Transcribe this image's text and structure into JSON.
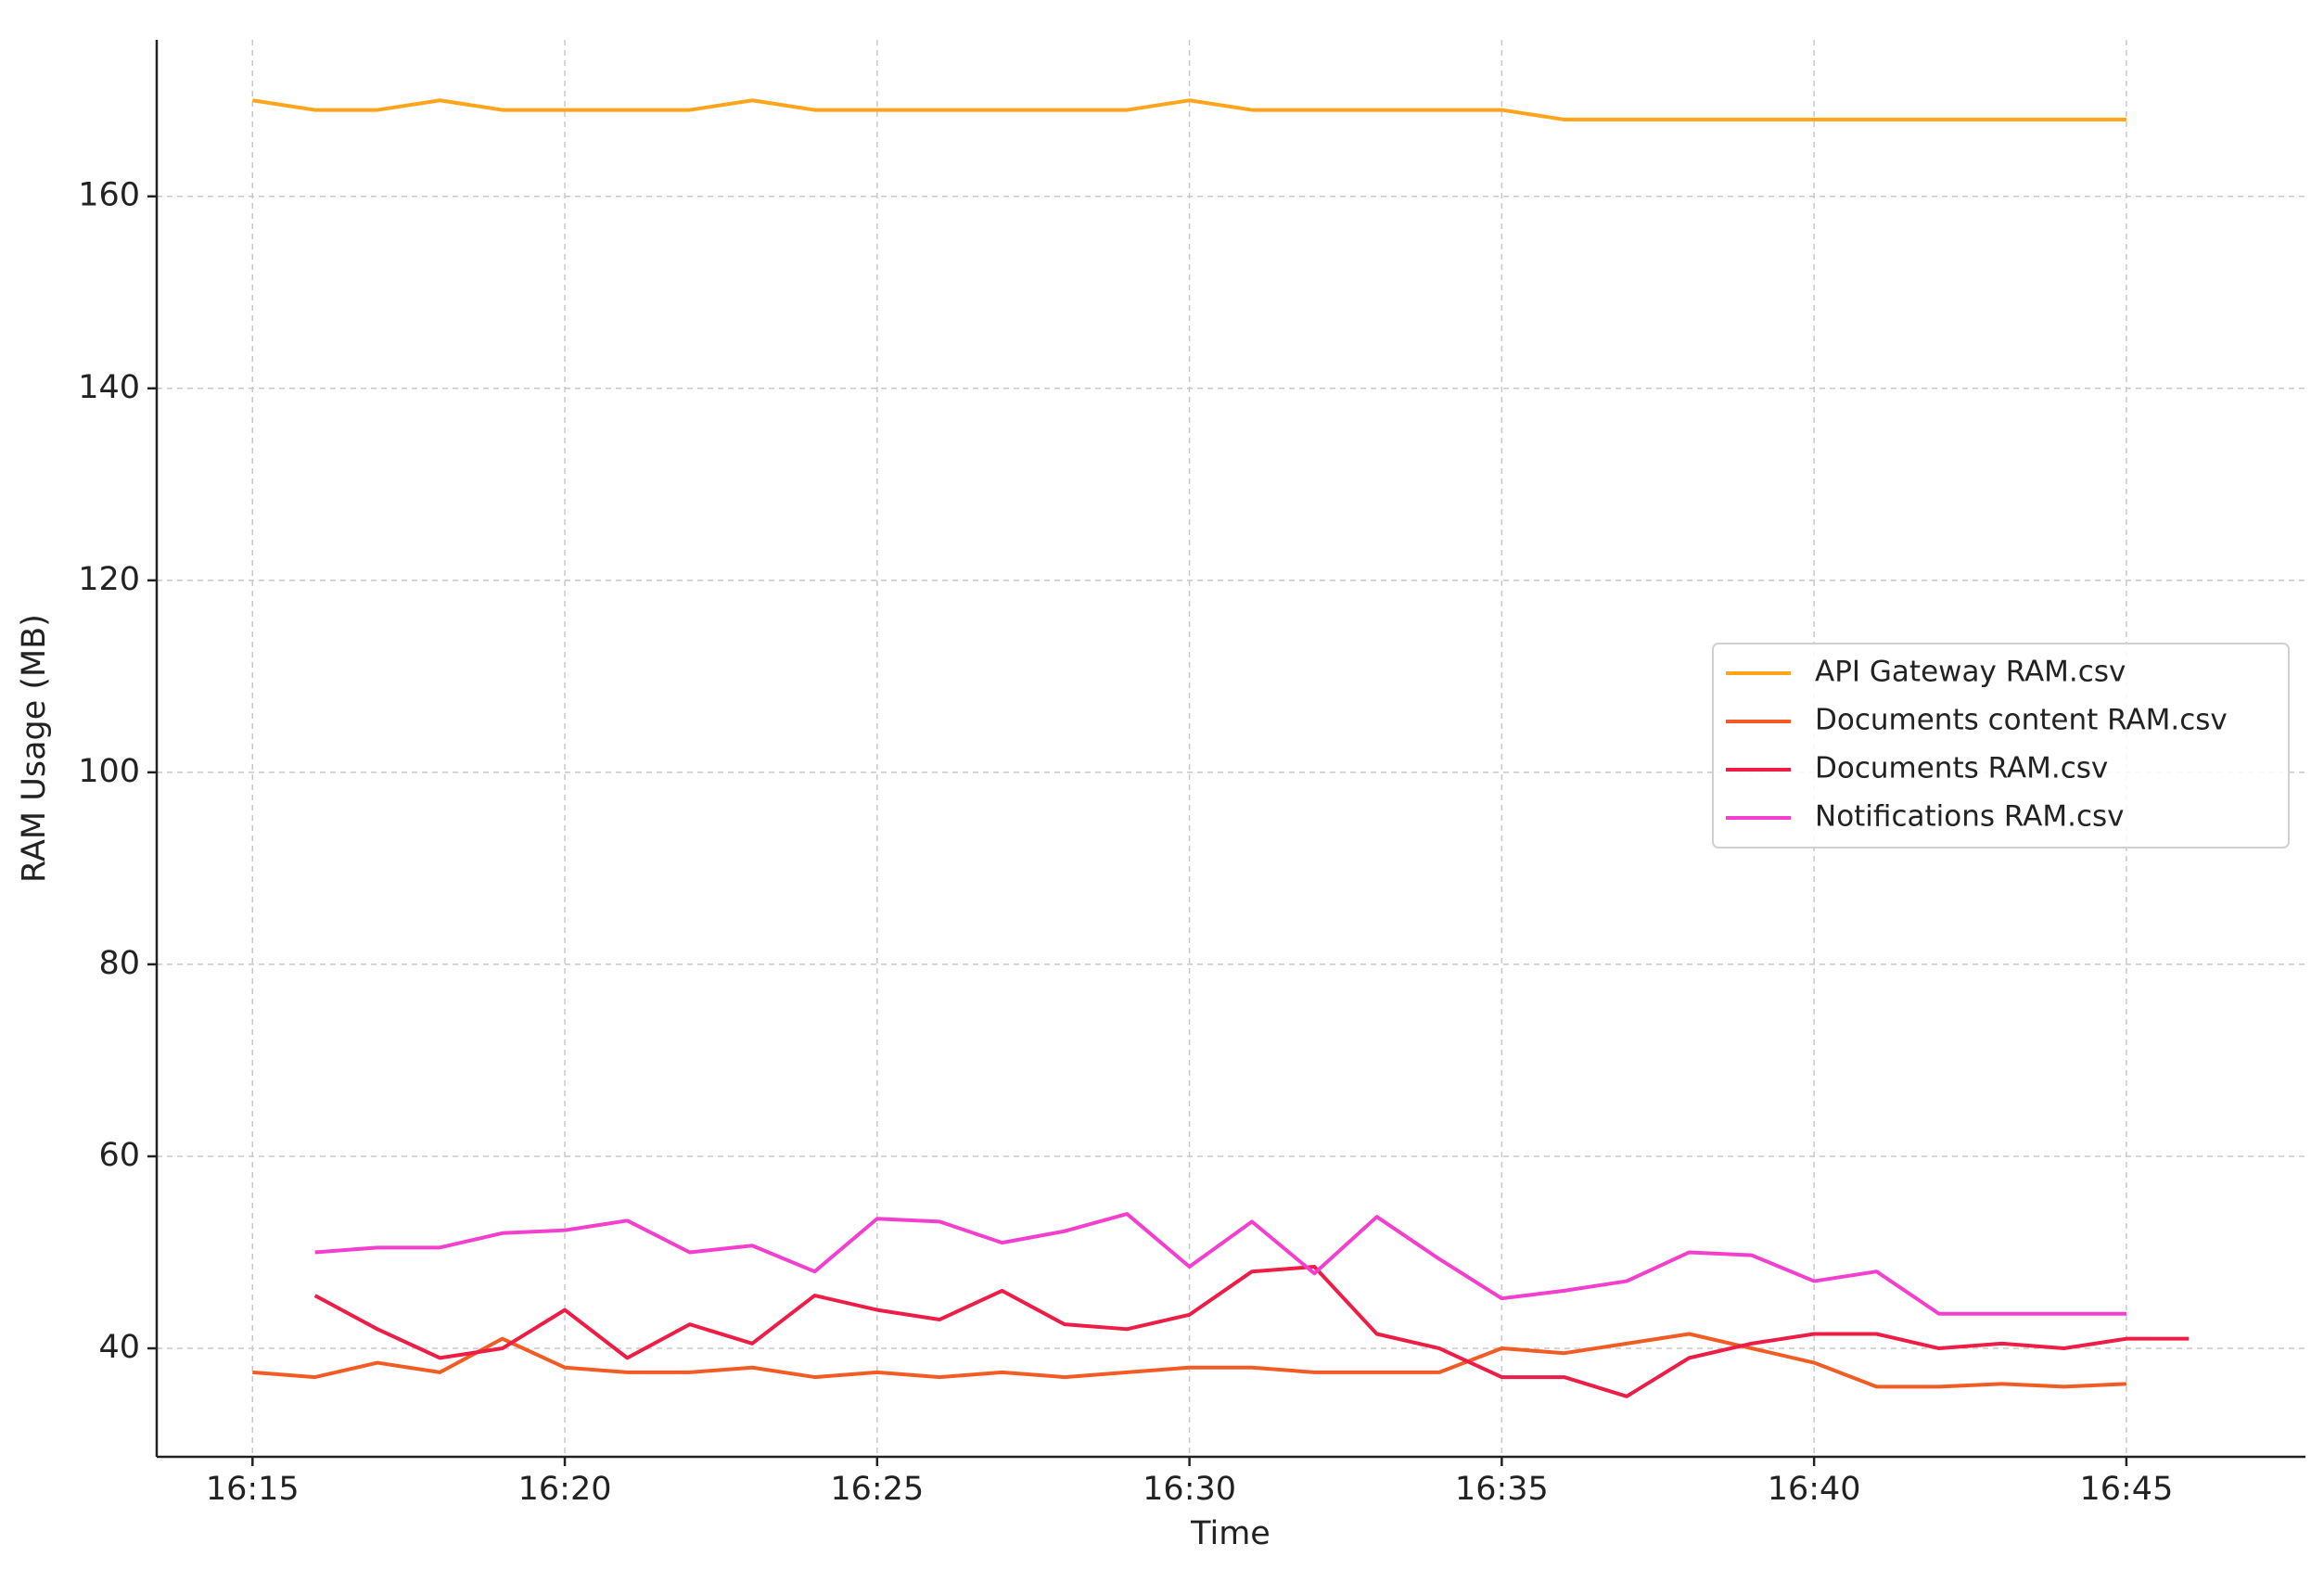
{
  "chart_data": {
    "type": "line",
    "xlabel": "Time",
    "ylabel": "RAM Usage (MB)",
    "x": [
      "16:15",
      "16:16",
      "16:17",
      "16:18",
      "16:19",
      "16:20",
      "16:21",
      "16:22",
      "16:23",
      "16:24",
      "16:25",
      "16:26",
      "16:27",
      "16:28",
      "16:29",
      "16:30",
      "16:31",
      "16:32",
      "16:33",
      "16:34",
      "16:35",
      "16:36",
      "16:37",
      "16:38",
      "16:39",
      "16:40",
      "16:41",
      "16:42",
      "16:43",
      "16:44",
      "16:45",
      "16:46"
    ],
    "series": [
      {
        "name": "API Gateway RAM.csv",
        "color": "#ffa41b",
        "values": [
          170,
          169,
          169,
          170,
          169,
          169,
          169,
          169,
          170,
          169,
          169,
          169,
          169,
          169,
          169,
          170,
          169,
          169,
          169,
          169,
          169,
          168,
          168,
          168,
          168,
          168,
          168,
          168,
          168,
          168,
          168,
          null
        ]
      },
      {
        "name": "Documents content RAM.csv",
        "color": "#f25c24",
        "values": [
          37.5,
          37,
          38.5,
          37.5,
          41,
          38,
          37.5,
          37.5,
          38,
          37,
          37.5,
          37,
          37.5,
          37,
          37.5,
          38,
          38,
          37.5,
          37.5,
          37.5,
          40,
          39.5,
          40.5,
          41.5,
          40,
          38.5,
          36,
          36,
          36.3,
          36,
          36.3,
          null
        ]
      },
      {
        "name": "Documents RAM.csv",
        "color": "#ee1d45",
        "values": [
          null,
          45.5,
          42,
          39,
          40,
          44,
          39,
          42.5,
          40.5,
          45.5,
          44,
          43,
          46,
          42.5,
          42,
          43.5,
          48,
          48.5,
          41.5,
          40,
          37,
          37,
          35,
          39,
          40.5,
          41.5,
          41.5,
          40,
          40.5,
          40,
          41,
          41
        ]
      },
      {
        "name": "Notifications RAM.csv",
        "color": "#f43fce",
        "values": [
          null,
          50,
          50.5,
          50.5,
          52,
          52.3,
          53.3,
          50,
          50.7,
          48,
          53.5,
          53.2,
          51,
          52.2,
          54,
          48.5,
          53.2,
          47.8,
          53.7,
          49.3,
          45.2,
          46,
          47,
          50,
          49.7,
          47,
          48,
          43.6,
          43.6,
          43.6,
          43.6,
          null
        ]
      }
    ],
    "xlim": [
      "16:13:28",
      "16:47:52"
    ],
    "xticks": [
      "16:15",
      "16:20",
      "16:25",
      "16:30",
      "16:35",
      "16:40",
      "16:45"
    ],
    "ylim": [
      28.7,
      176.3
    ],
    "yticks": [
      40,
      60,
      80,
      100,
      120,
      140,
      160
    ],
    "grid": true,
    "legend": "right"
  }
}
